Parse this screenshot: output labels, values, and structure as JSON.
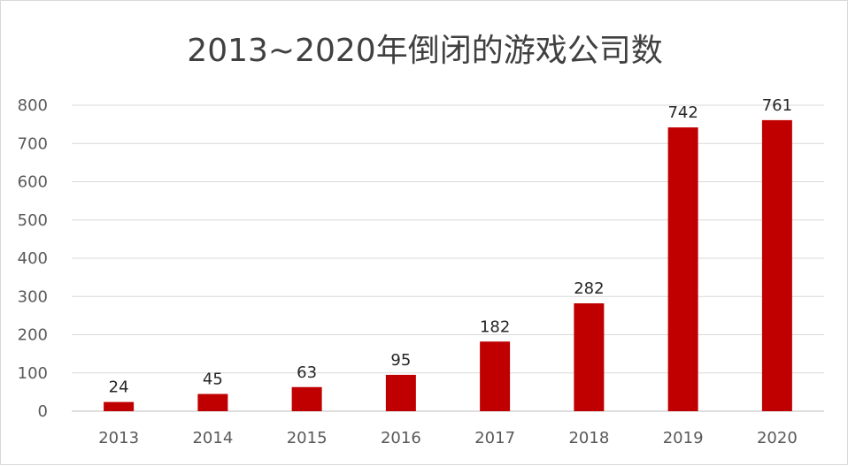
{
  "chart_data": {
    "type": "bar",
    "title": "2013~2020年倒闭的游戏公司数",
    "categories": [
      "2013",
      "2014",
      "2015",
      "2016",
      "2017",
      "2018",
      "2019",
      "2020"
    ],
    "values": [
      24,
      45,
      63,
      95,
      182,
      282,
      742,
      761
    ],
    "ylim": [
      0,
      800
    ],
    "yticks": [
      0,
      100,
      200,
      300,
      400,
      500,
      600,
      700,
      800
    ],
    "xlabel": "",
    "ylabel": "",
    "grid": true,
    "data_labels": true,
    "bar_color": "#c00000"
  }
}
